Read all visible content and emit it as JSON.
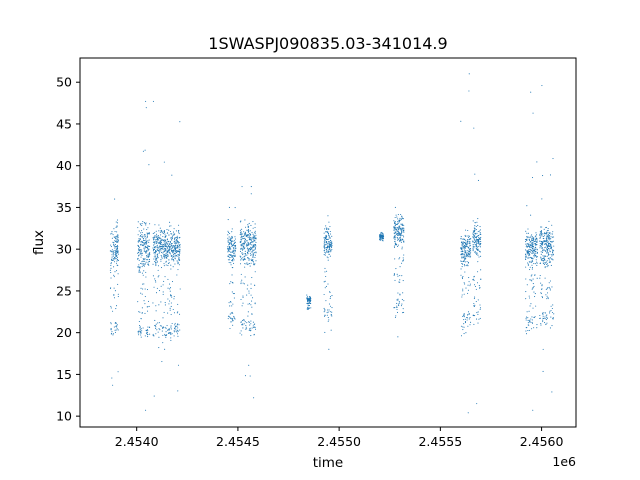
{
  "chart_data": {
    "type": "scatter",
    "title": "1SWASPJ090835.03-341014.9",
    "xlabel": "time",
    "ylabel": "flux",
    "x_offset_text": "1e6",
    "xlim": [
      2453720,
      2456170
    ],
    "ylim": [
      8.7,
      52.9
    ],
    "xticks": [
      2454000,
      2454500,
      2455000,
      2455500,
      2456000
    ],
    "xtick_labels": [
      "2.4540",
      "2.4545",
      "2.4550",
      "2.4555",
      "2.4560"
    ],
    "yticks": [
      10,
      15,
      20,
      25,
      30,
      35,
      40,
      45,
      50
    ],
    "ytick_labels": [
      "10",
      "15",
      "20",
      "25",
      "30",
      "35",
      "40",
      "45",
      "50"
    ],
    "grid": false,
    "legend": "none",
    "color": "#1f77b4",
    "marker": "small dot",
    "clusters": [
      {
        "time_range": [
          2453870,
          2453910
        ],
        "main_flux_range": [
          26,
          34
        ],
        "low_flux_range": [
          19,
          22
        ],
        "flux_extent": [
          13.7,
          36
        ]
      },
      {
        "time_range": [
          2454005,
          2454065
        ],
        "main_flux_range": [
          26,
          34
        ],
        "low_flux_range": [
          19,
          21.5
        ],
        "flux_extent": [
          10.7,
          47.7
        ]
      },
      {
        "time_range": [
          2454080,
          2454215
        ],
        "main_flux_range": [
          27,
          33.5
        ],
        "low_flux_range": [
          18.5,
          22
        ],
        "flux_extent": [
          12.4,
          47.7
        ]
      },
      {
        "time_range": [
          2454450,
          2454490
        ],
        "main_flux_range": [
          27,
          33
        ],
        "low_flux_range": [
          20.5,
          23
        ],
        "flux_extent": [
          20.5,
          35
        ]
      },
      {
        "time_range": [
          2454510,
          2454590
        ],
        "main_flux_range": [
          27,
          34
        ],
        "low_flux_range": [
          19,
          23
        ],
        "flux_extent": [
          12.2,
          37.5
        ]
      },
      {
        "time_range": [
          2454840,
          2454860
        ],
        "main_flux_range": [
          23.5,
          24.5
        ],
        "low_flux_range": [
          22.5,
          23.5
        ],
        "flux_extent": [
          22.8,
          24.5
        ]
      },
      {
        "time_range": [
          2454925,
          2454965
        ],
        "main_flux_range": [
          28,
          33.5
        ],
        "low_flux_range": [
          21,
          24
        ],
        "flux_extent": [
          18,
          34
        ]
      },
      {
        "time_range": [
          2455200,
          2455220
        ],
        "main_flux_range": [
          31,
          32
        ],
        "low_flux_range": [
          31,
          32
        ],
        "flux_extent": [
          31,
          32
        ]
      },
      {
        "time_range": [
          2455270,
          2455320
        ],
        "main_flux_range": [
          29,
          35
        ],
        "low_flux_range": [
          21,
          26
        ],
        "flux_extent": [
          19.5,
          35
        ]
      },
      {
        "time_range": [
          2455600,
          2455650
        ],
        "main_flux_range": [
          27,
          33
        ],
        "low_flux_range": [
          19,
          24
        ],
        "flux_extent": [
          10.4,
          51
        ]
      },
      {
        "time_range": [
          2455660,
          2455700
        ],
        "main_flux_range": [
          28,
          34
        ],
        "low_flux_range": [
          20,
          25
        ],
        "flux_extent": [
          11.5,
          44.5
        ]
      },
      {
        "time_range": [
          2455920,
          2455980
        ],
        "main_flux_range": [
          27,
          33
        ],
        "low_flux_range": [
          19,
          24
        ],
        "flux_extent": [
          10.7,
          48.8
        ]
      },
      {
        "time_range": [
          2455990,
          2456060
        ],
        "main_flux_range": [
          27,
          34
        ],
        "low_flux_range": [
          20,
          24
        ],
        "flux_extent": [
          12.9,
          49.6
        ]
      }
    ]
  }
}
